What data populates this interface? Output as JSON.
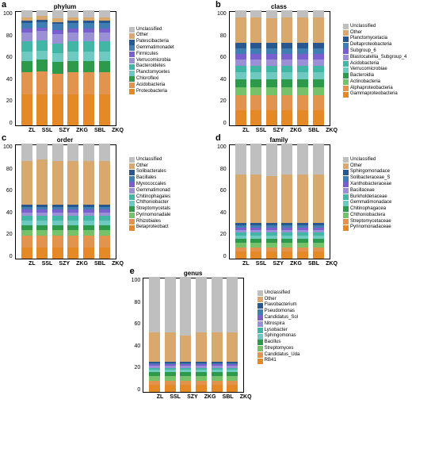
{
  "categories": [
    "ZL",
    "SSL",
    "SZY",
    "ZKG",
    "SBL",
    "ZKQ"
  ],
  "yticks": [
    0,
    20,
    40,
    60,
    80,
    100
  ],
  "plot": {
    "w": 128,
    "h": 145,
    "barW": 14
  },
  "colors": {
    "unclassified": "#bfbfbf",
    "other": "#d9a86c",
    "c1": "#28588f",
    "c2": "#3f7db2",
    "c3": "#7a5fcf",
    "c4": "#9b8fd6",
    "c5": "#41b6a4",
    "c6": "#6ec9c0",
    "c7": "#2d9a4b",
    "c8": "#76c26a",
    "c9": "#e2944e",
    "c10": "#e58826"
  },
  "panels": [
    {
      "id": "a",
      "title": "phylum",
      "taxa": [
        "Unclassified",
        "Other",
        "Patescibacteria",
        "Gemmatimonadet",
        "Firmicutes",
        "Verrucomicrobia",
        "Bacteroidetes",
        "Planctomycetes",
        "Chloroflexi",
        "Acidobacteria",
        "Proteobacteria"
      ],
      "taxaColors": [
        "unclassified",
        "other",
        "c1",
        "c2",
        "c3",
        "c4",
        "c5",
        "c6",
        "c7",
        "c9",
        "c10"
      ],
      "data": [
        [
          6,
          3,
          2,
          5,
          3,
          8,
          9,
          8,
          10,
          19,
          27
        ],
        [
          5,
          3,
          2,
          5,
          3,
          8,
          9,
          8,
          10,
          20,
          27
        ],
        [
          7,
          3,
          2,
          5,
          4,
          8,
          8,
          8,
          10,
          18,
          27
        ],
        [
          6,
          3,
          2,
          5,
          3,
          8,
          9,
          8,
          10,
          19,
          27
        ],
        [
          6,
          3,
          2,
          5,
          3,
          8,
          9,
          8,
          10,
          19,
          27
        ],
        [
          6,
          3,
          2,
          5,
          3,
          8,
          9,
          8,
          10,
          19,
          27
        ]
      ]
    },
    {
      "id": "b",
      "title": "class",
      "taxa": [
        "Unclassified",
        "Other",
        "Planctomycetacia",
        "Deltaproteobacteria",
        "Subgroup_6",
        "Blastocatellia_Subgroup_4",
        "Acidobacteria",
        "Verrucomicrobiae",
        "Bacteroidia",
        "Actinobacteria",
        "Alphaproteobacteria",
        "Gammaproteobacteria"
      ],
      "taxaColors": [
        "unclassified",
        "other",
        "c1",
        "c2",
        "c3",
        "c4",
        "c5",
        "c6",
        "c7",
        "c8",
        "c9",
        "c10"
      ],
      "data": [
        [
          6,
          22,
          5,
          5,
          5,
          5,
          6,
          6,
          7,
          7,
          13,
          13
        ],
        [
          6,
          22,
          5,
          5,
          5,
          5,
          6,
          6,
          7,
          7,
          13,
          13
        ],
        [
          7,
          21,
          5,
          5,
          5,
          5,
          6,
          6,
          7,
          7,
          13,
          13
        ],
        [
          6,
          22,
          5,
          5,
          5,
          5,
          6,
          6,
          7,
          7,
          13,
          13
        ],
        [
          6,
          22,
          5,
          5,
          5,
          5,
          6,
          6,
          7,
          7,
          13,
          13
        ],
        [
          6,
          22,
          5,
          5,
          5,
          5,
          6,
          6,
          7,
          7,
          13,
          13
        ]
      ]
    },
    {
      "id": "c",
      "title": "order",
      "taxa": [
        "Unclassified",
        "Other",
        "Solibacterales",
        "Bacillales",
        "Myxococcales",
        "Gemmatimonad",
        "Chitinophagales",
        "Chthoniobacter",
        "Streptomycetals",
        "Pyrinomonadale",
        "Rhizobiales",
        "Betaproteobact"
      ],
      "taxaColors": [
        "unclassified",
        "other",
        "c1",
        "c2",
        "c3",
        "c4",
        "c5",
        "c6",
        "c7",
        "c8",
        "c9",
        "c10"
      ],
      "data": [
        [
          15,
          38,
          2,
          2,
          3,
          3,
          4,
          4,
          4,
          5,
          10,
          10
        ],
        [
          14,
          39,
          2,
          2,
          3,
          3,
          4,
          4,
          4,
          5,
          10,
          10
        ],
        [
          15,
          38,
          2,
          2,
          3,
          3,
          4,
          4,
          4,
          5,
          10,
          10
        ],
        [
          15,
          38,
          2,
          2,
          3,
          3,
          4,
          4,
          4,
          5,
          10,
          10
        ],
        [
          15,
          38,
          2,
          2,
          3,
          3,
          4,
          4,
          4,
          5,
          10,
          10
        ],
        [
          15,
          38,
          2,
          2,
          3,
          3,
          4,
          4,
          4,
          5,
          10,
          10
        ]
      ]
    },
    {
      "id": "d",
      "title": "family",
      "taxa": [
        "Unclassified",
        "Other",
        "Sphingomonadace",
        "Solibacteraceae_S",
        "Xanthobacteraceae",
        "Bacillaceae",
        "Burkholderiaceae",
        "Gemmatimonadace",
        "Chitinophagacea",
        "Chthoniobactera",
        "Streptomycetaceae",
        "Pyrinomonadaceae"
      ],
      "taxaColors": [
        "unclassified",
        "other",
        "c1",
        "c2",
        "c3",
        "c4",
        "c5",
        "c6",
        "c7",
        "c8",
        "c9",
        "c10"
      ],
      "data": [
        [
          27,
          42,
          2,
          2,
          2,
          2,
          3,
          3,
          3,
          4,
          4,
          6
        ],
        [
          27,
          42,
          2,
          2,
          2,
          2,
          3,
          3,
          3,
          4,
          4,
          6
        ],
        [
          28,
          41,
          2,
          2,
          2,
          2,
          3,
          3,
          3,
          4,
          4,
          6
        ],
        [
          27,
          42,
          2,
          2,
          2,
          2,
          3,
          3,
          3,
          4,
          4,
          6
        ],
        [
          27,
          42,
          2,
          2,
          2,
          2,
          3,
          3,
          3,
          4,
          4,
          6
        ],
        [
          27,
          42,
          2,
          2,
          2,
          2,
          3,
          3,
          3,
          4,
          4,
          6
        ]
      ]
    },
    {
      "id": "e",
      "title": "genus",
      "taxa": [
        "Unclassified",
        "Other",
        "Flavobacterium",
        "Pseudomonas",
        "Candidatus_Sol",
        "Nitrospira",
        "Lysobacter",
        "Sphingomonas",
        "Bacillus",
        "Streptomyces",
        "Candidatus_Uda",
        "RB41"
      ],
      "taxaColors": [
        "unclassified",
        "other",
        "c1",
        "c2",
        "c3",
        "c4",
        "c5",
        "c6",
        "c7",
        "c8",
        "c9",
        "c10"
      ],
      "data": [
        [
          48,
          26,
          1,
          1,
          1,
          2,
          2,
          2,
          3,
          4,
          4,
          6
        ],
        [
          48,
          26,
          1,
          1,
          1,
          2,
          2,
          2,
          3,
          4,
          4,
          6
        ],
        [
          51,
          23,
          1,
          1,
          1,
          2,
          2,
          2,
          3,
          4,
          4,
          6
        ],
        [
          48,
          26,
          1,
          1,
          1,
          2,
          2,
          2,
          3,
          4,
          4,
          6
        ],
        [
          48,
          26,
          1,
          1,
          1,
          2,
          2,
          2,
          3,
          4,
          4,
          6
        ],
        [
          48,
          26,
          1,
          1,
          1,
          2,
          2,
          2,
          3,
          4,
          4,
          6
        ]
      ]
    }
  ]
}
